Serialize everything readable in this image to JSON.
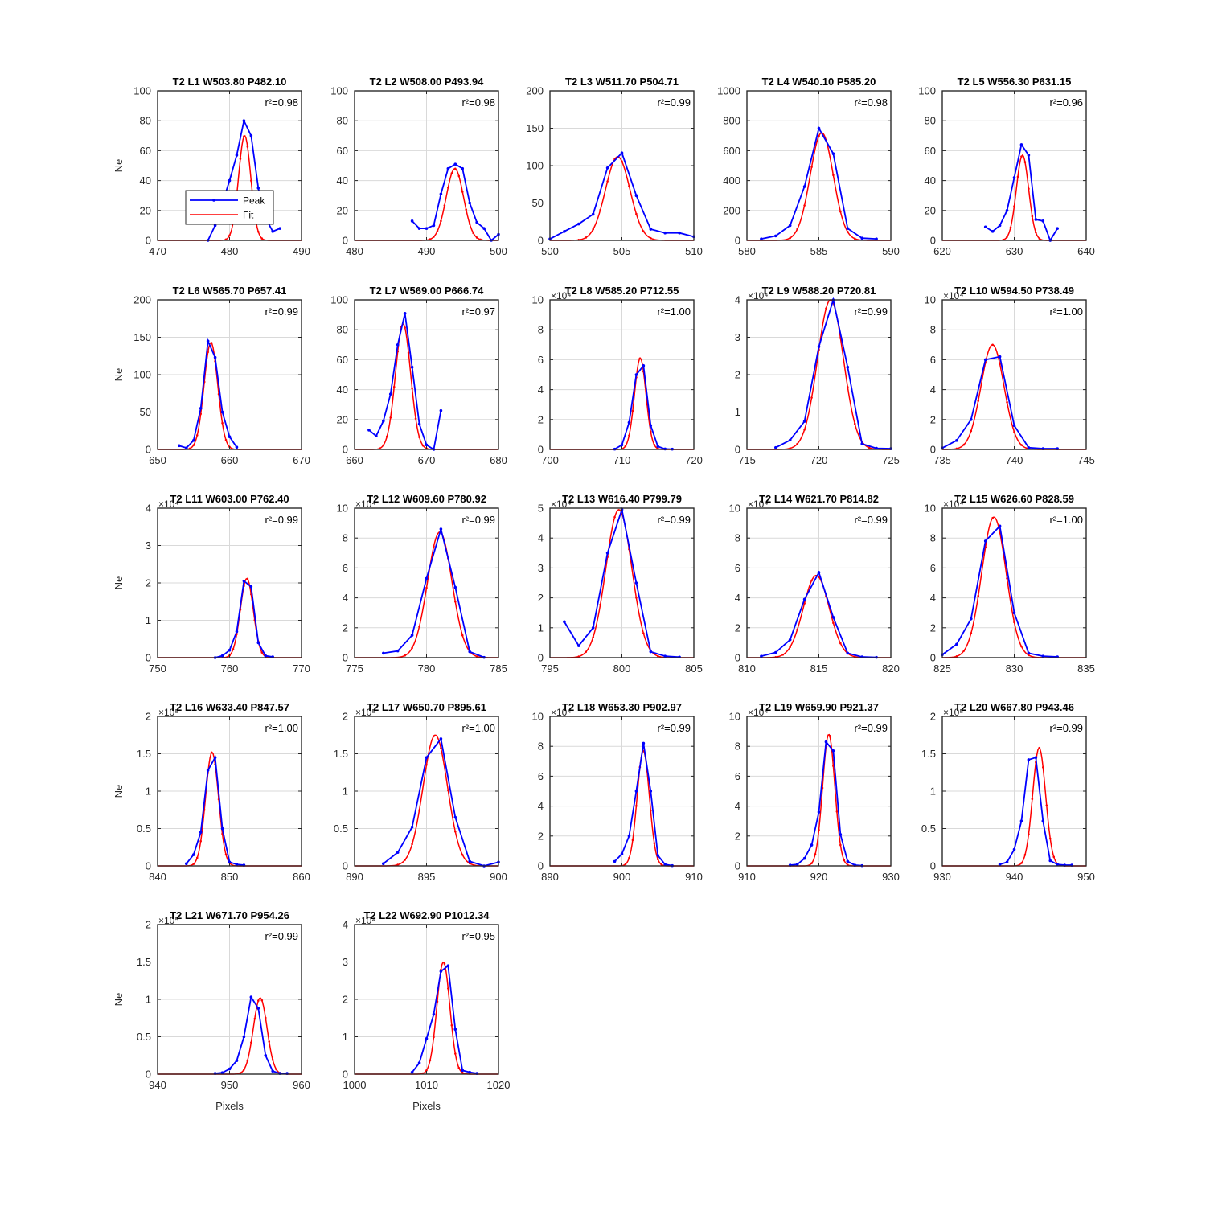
{
  "figure": {
    "legend": {
      "peak_label": "Peak",
      "fit_label": "Fit",
      "colors": {
        "peak": "#0000ff",
        "fit": "#ff0000"
      }
    },
    "y_label": "Ne",
    "x_label": "Pixels"
  },
  "chart_data": [
    {
      "type": "line",
      "title": "T2 L1 W503.80 P482.10",
      "r2": "r²=0.98",
      "xlim": [
        470,
        490
      ],
      "xticks": [
        470,
        480,
        490
      ],
      "ylim": [
        0,
        100
      ],
      "yticks": [
        0,
        20,
        40,
        60,
        80,
        100
      ],
      "exponent": "",
      "center": 482.1,
      "fit": {
        "amplitude": 70,
        "sigma": 0.85
      },
      "peak": {
        "x": [
          477,
          478,
          479,
          480,
          481,
          482,
          483,
          484,
          485,
          486,
          487
        ],
        "y": [
          0,
          10,
          25,
          40,
          57,
          80,
          70,
          35,
          15,
          6,
          8
        ]
      }
    },
    {
      "type": "line",
      "title": "T2 L2 W508.00 P493.94",
      "r2": "r²=0.98",
      "xlim": [
        480,
        500
      ],
      "xticks": [
        480,
        490,
        500
      ],
      "ylim": [
        0,
        100
      ],
      "yticks": [
        0,
        20,
        40,
        60,
        80,
        100
      ],
      "exponent": "",
      "center": 493.94,
      "fit": {
        "amplitude": 48,
        "sigma": 1.2
      },
      "peak": {
        "x": [
          488,
          489,
          490,
          491,
          492,
          493,
          494,
          495,
          496,
          497,
          498,
          499,
          500
        ],
        "y": [
          13,
          8,
          8,
          10,
          31,
          48,
          51,
          48,
          25,
          12,
          8,
          0,
          4
        ]
      }
    },
    {
      "type": "line",
      "title": "T2 L3 W511.70 P504.71",
      "r2": "r²=0.99",
      "xlim": [
        500,
        510
      ],
      "xticks": [
        500,
        505,
        510
      ],
      "ylim": [
        0,
        200
      ],
      "yticks": [
        0,
        50,
        100,
        150,
        200
      ],
      "exponent": "",
      "center": 504.71,
      "fit": {
        "amplitude": 112,
        "sigma": 0.85
      },
      "peak": {
        "x": [
          500,
          501,
          502,
          503,
          504,
          505,
          506,
          507,
          508,
          509,
          510
        ],
        "y": [
          2,
          12,
          22,
          35,
          97,
          117,
          60,
          15,
          10,
          10,
          5
        ]
      }
    },
    {
      "type": "line",
      "title": "T2 L4 W540.10 P585.20",
      "r2": "r²=0.98",
      "xlim": [
        580,
        590
      ],
      "xticks": [
        580,
        585,
        590
      ],
      "ylim": [
        0,
        1000
      ],
      "yticks": [
        0,
        200,
        400,
        600,
        800,
        1000
      ],
      "exponent": "",
      "center": 585.2,
      "fit": {
        "amplitude": 720,
        "sigma": 0.8
      },
      "peak": {
        "x": [
          581,
          582,
          583,
          584,
          585,
          586,
          587,
          588,
          589
        ],
        "y": [
          10,
          30,
          100,
          360,
          750,
          580,
          80,
          15,
          10
        ]
      }
    },
    {
      "type": "line",
      "title": "T2 L5 W556.30 P631.15",
      "r2": "r²=0.96",
      "xlim": [
        620,
        640
      ],
      "xticks": [
        620,
        630,
        640
      ],
      "ylim": [
        0,
        100
      ],
      "yticks": [
        0,
        20,
        40,
        60,
        80,
        100
      ],
      "exponent": "",
      "center": 631.15,
      "fit": {
        "amplitude": 57,
        "sigma": 0.85
      },
      "peak": {
        "x": [
          626,
          627,
          628,
          629,
          630,
          631,
          632,
          633,
          634,
          635,
          636
        ],
        "y": [
          9,
          6,
          10,
          20,
          42,
          64,
          57,
          14,
          13,
          0,
          8
        ]
      }
    },
    {
      "type": "line",
      "title": "T2 L6 W565.70 P657.41",
      "r2": "r²=0.99",
      "xlim": [
        650,
        670
      ],
      "xticks": [
        650,
        660,
        670
      ],
      "ylim": [
        0,
        200
      ],
      "yticks": [
        0,
        50,
        100,
        150,
        200
      ],
      "exponent": "",
      "center": 657.41,
      "fit": {
        "amplitude": 143,
        "sigma": 0.95
      },
      "peak": {
        "x": [
          653,
          654,
          655,
          656,
          657,
          658,
          659,
          660,
          661
        ],
        "y": [
          5,
          2,
          12,
          55,
          145,
          123,
          50,
          17,
          3
        ]
      }
    },
    {
      "type": "line",
      "title": "T2 L7 W569.00 P666.74",
      "r2": "r²=0.97",
      "xlim": [
        660,
        680
      ],
      "xticks": [
        660,
        670,
        680
      ],
      "ylim": [
        0,
        100
      ],
      "yticks": [
        0,
        20,
        40,
        60,
        80,
        100
      ],
      "exponent": "",
      "center": 666.74,
      "fit": {
        "amplitude": 84,
        "sigma": 1.05
      },
      "peak": {
        "x": [
          662,
          663,
          664,
          665,
          666,
          667,
          668,
          669,
          670,
          671,
          672
        ],
        "y": [
          13,
          9,
          19,
          37,
          70,
          91,
          55,
          17,
          3,
          0,
          26
        ]
      }
    },
    {
      "type": "line",
      "title": "T2 L8 W585.20 P712.55",
      "r2": "r²=1.00",
      "xlim": [
        700,
        720
      ],
      "xticks": [
        700,
        710,
        720
      ],
      "ylim": [
        0,
        10
      ],
      "yticks": [
        0,
        2,
        4,
        6,
        8,
        10
      ],
      "exponent": "×10⁴",
      "center": 712.55,
      "fit": {
        "amplitude": 6.1,
        "sigma": 0.8
      },
      "peak": {
        "x": [
          709,
          710,
          711,
          712,
          713,
          714,
          715,
          716,
          717
        ],
        "y": [
          0.02,
          0.3,
          1.8,
          5.0,
          5.6,
          1.6,
          0.2,
          0.03,
          0.02
        ]
      }
    },
    {
      "type": "line",
      "title": "T2 L9 W588.20 P720.81",
      "r2": "r²=0.99",
      "xlim": [
        715,
        725
      ],
      "xticks": [
        715,
        720,
        725
      ],
      "ylim": [
        0,
        4
      ],
      "yticks": [
        0,
        1,
        2,
        3,
        4
      ],
      "exponent": "×10⁴",
      "center": 720.81,
      "fit": {
        "amplitude": 4.0,
        "sigma": 0.9
      },
      "peak": {
        "x": [
          717,
          718,
          719,
          720,
          721,
          722,
          723,
          724,
          725
        ],
        "y": [
          0.05,
          0.25,
          0.75,
          2.75,
          4.0,
          2.2,
          0.15,
          0.03,
          0.02
        ]
      }
    },
    {
      "type": "line",
      "title": "T2 L10 W594.50 P738.49",
      "r2": "r²=1.00",
      "xlim": [
        735,
        745
      ],
      "xticks": [
        735,
        740,
        745
      ],
      "ylim": [
        0,
        10
      ],
      "yticks": [
        0,
        2,
        4,
        6,
        8,
        10
      ],
      "exponent": "×10⁴",
      "center": 738.49,
      "fit": {
        "amplitude": 7.0,
        "sigma": 0.8
      },
      "peak": {
        "x": [
          735,
          736,
          737,
          738,
          739,
          740,
          741,
          742,
          743
        ],
        "y": [
          0.1,
          0.6,
          2.0,
          6.0,
          6.2,
          1.6,
          0.12,
          0.05,
          0.05
        ]
      }
    },
    {
      "type": "line",
      "title": "T2 L11 W603.00 P762.40",
      "r2": "r²=0.99",
      "xlim": [
        750,
        770
      ],
      "xticks": [
        750,
        760,
        770
      ],
      "ylim": [
        0,
        4
      ],
      "yticks": [
        0,
        1,
        2,
        3,
        4
      ],
      "exponent": "×10⁴",
      "center": 762.4,
      "fit": {
        "amplitude": 2.12,
        "sigma": 0.9
      },
      "peak": {
        "x": [
          758,
          759,
          760,
          761,
          762,
          763,
          764,
          765,
          766
        ],
        "y": [
          0.0,
          0.05,
          0.2,
          0.7,
          2.05,
          1.9,
          0.4,
          0.05,
          0.02
        ]
      }
    },
    {
      "type": "line",
      "title": "T2 L12 W609.60 P780.92",
      "r2": "r²=0.99",
      "xlim": [
        775,
        785
      ],
      "xticks": [
        775,
        780,
        785
      ],
      "ylim": [
        0,
        10
      ],
      "yticks": [
        0,
        2,
        4,
        6,
        8,
        10
      ],
      "exponent": "×10⁴",
      "center": 780.92,
      "fit": {
        "amplitude": 8.4,
        "sigma": 0.85
      },
      "peak": {
        "x": [
          777,
          778,
          779,
          780,
          781,
          782,
          783,
          784
        ],
        "y": [
          0.3,
          0.45,
          1.5,
          5.3,
          8.6,
          4.7,
          0.4,
          0.02
        ]
      }
    },
    {
      "type": "line",
      "title": "T2 L13 W616.40 P799.79",
      "r2": "r²=0.99",
      "xlim": [
        795,
        805
      ],
      "xticks": [
        795,
        800,
        805
      ],
      "ylim": [
        0,
        5
      ],
      "yticks": [
        0,
        1,
        2,
        3,
        4,
        5
      ],
      "exponent": "×10⁴",
      "center": 799.79,
      "fit": {
        "amplitude": 4.95,
        "sigma": 0.9
      },
      "peak": {
        "x": [
          796,
          797,
          798,
          799,
          800,
          801,
          802,
          803,
          804
        ],
        "y": [
          1.2,
          0.4,
          1.0,
          3.5,
          4.95,
          2.5,
          0.2,
          0.05,
          0.02
        ]
      }
    },
    {
      "type": "line",
      "title": "T2 L14 W621.70 P814.82",
      "r2": "r²=0.99",
      "xlim": [
        810,
        820
      ],
      "xticks": [
        810,
        815,
        820
      ],
      "ylim": [
        0,
        10
      ],
      "yticks": [
        0,
        2,
        4,
        6,
        8,
        10
      ],
      "exponent": "×10⁴",
      "center": 814.82,
      "fit": {
        "amplitude": 5.5,
        "sigma": 0.9
      },
      "peak": {
        "x": [
          811,
          812,
          813,
          814,
          815,
          816,
          817,
          818,
          819
        ],
        "y": [
          0.1,
          0.35,
          1.2,
          3.9,
          5.7,
          2.7,
          0.3,
          0.05,
          0.02
        ]
      }
    },
    {
      "type": "line",
      "title": "T2 L15 W626.60 P828.59",
      "r2": "r²=1.00",
      "xlim": [
        825,
        835
      ],
      "xticks": [
        825,
        830,
        835
      ],
      "ylim": [
        0,
        10
      ],
      "yticks": [
        0,
        2,
        4,
        6,
        8,
        10
      ],
      "exponent": "×10⁴",
      "center": 828.59,
      "fit": {
        "amplitude": 9.4,
        "sigma": 0.85
      },
      "peak": {
        "x": [
          825,
          826,
          827,
          828,
          829,
          830,
          831,
          832,
          833
        ],
        "y": [
          0.2,
          0.9,
          2.6,
          7.8,
          8.8,
          3.0,
          0.3,
          0.1,
          0.05
        ]
      }
    },
    {
      "type": "line",
      "title": "T2 L16 W633.40 P847.57",
      "r2": "r²=1.00",
      "xlim": [
        840,
        860
      ],
      "xticks": [
        840,
        850,
        860
      ],
      "ylim": [
        0,
        2
      ],
      "yticks": [
        0,
        0.5,
        1,
        1.5,
        2
      ],
      "exponent": "×10⁵",
      "center": 847.57,
      "fit": {
        "amplitude": 1.52,
        "sigma": 0.9
      },
      "peak": {
        "x": [
          844,
          845,
          846,
          847,
          848,
          849,
          850,
          851,
          852
        ],
        "y": [
          0.03,
          0.15,
          0.45,
          1.28,
          1.45,
          0.5,
          0.05,
          0.02,
          0.01
        ]
      }
    },
    {
      "type": "line",
      "title": "T2 L17 W650.70 P895.61",
      "r2": "r²=1.00",
      "xlim": [
        890,
        900
      ],
      "xticks": [
        890,
        895,
        900
      ],
      "ylim": [
        0,
        2
      ],
      "yticks": [
        0,
        0.5,
        1,
        1.5,
        2
      ],
      "exponent": "×10⁵",
      "center": 895.61,
      "fit": {
        "amplitude": 1.75,
        "sigma": 0.85
      },
      "peak": {
        "x": [
          892,
          893,
          894,
          895,
          896,
          897,
          898,
          899,
          900
        ],
        "y": [
          0.03,
          0.18,
          0.52,
          1.45,
          1.7,
          0.65,
          0.06,
          0.0,
          0.05
        ]
      }
    },
    {
      "type": "line",
      "title": "T2 L18 W653.30 P902.97",
      "r2": "r²=0.99",
      "xlim": [
        890,
        910
      ],
      "xticks": [
        890,
        900,
        910
      ],
      "ylim": [
        0,
        10
      ],
      "yticks": [
        0,
        2,
        4,
        6,
        8,
        10
      ],
      "exponent": "×10⁴",
      "center": 902.97,
      "fit": {
        "amplitude": 7.7,
        "sigma": 0.85
      },
      "peak": {
        "x": [
          899,
          900,
          901,
          902,
          903,
          904,
          905,
          906,
          907
        ],
        "y": [
          0.3,
          0.8,
          2.0,
          5.0,
          8.2,
          5.0,
          0.7,
          0.1,
          0.02
        ]
      }
    },
    {
      "type": "line",
      "title": "T2 L19 W659.90 P921.37",
      "r2": "r²=0.99",
      "xlim": [
        910,
        930
      ],
      "xticks": [
        910,
        920,
        930
      ],
      "ylim": [
        0,
        10
      ],
      "yticks": [
        0,
        2,
        4,
        6,
        8,
        10
      ],
      "exponent": "×10⁴",
      "center": 921.37,
      "fit": {
        "amplitude": 8.8,
        "sigma": 0.85
      },
      "peak": {
        "x": [
          916,
          917,
          918,
          919,
          920,
          921,
          922,
          923,
          924,
          925,
          926
        ],
        "y": [
          0.05,
          0.1,
          0.5,
          1.4,
          3.6,
          8.3,
          7.7,
          2.1,
          0.3,
          0.05,
          0.02
        ]
      }
    },
    {
      "type": "line",
      "title": "T2 L20 W667.80 P943.46",
      "r2": "r²=0.99",
      "xlim": [
        930,
        950
      ],
      "xticks": [
        930,
        940,
        950
      ],
      "ylim": [
        0,
        2
      ],
      "yticks": [
        0,
        0.5,
        1,
        1.5,
        2
      ],
      "exponent": "×10⁵",
      "center": 943.46,
      "fit": {
        "amplitude": 1.58,
        "sigma": 0.9
      },
      "peak": {
        "x": [
          938,
          939,
          940,
          941,
          942,
          943,
          944,
          945,
          946,
          947,
          948
        ],
        "y": [
          0.02,
          0.05,
          0.22,
          0.6,
          1.42,
          1.45,
          0.6,
          0.07,
          0.02,
          0.01,
          0.01
        ]
      }
    },
    {
      "type": "line",
      "title": "T2 L21 W671.70 P954.26",
      "r2": "r²=0.99",
      "xlim": [
        940,
        960
      ],
      "xticks": [
        940,
        950,
        960
      ],
      "ylim": [
        0,
        2
      ],
      "yticks": [
        0,
        0.5,
        1,
        1.5,
        2
      ],
      "exponent": "×10⁵",
      "center": 954.26,
      "fit": {
        "amplitude": 1.02,
        "sigma": 0.95
      },
      "peak": {
        "x": [
          948,
          949,
          950,
          951,
          952,
          953,
          954,
          955,
          956,
          957,
          958
        ],
        "y": [
          0.01,
          0.02,
          0.07,
          0.18,
          0.5,
          1.03,
          0.88,
          0.25,
          0.04,
          0.01,
          0.01
        ]
      }
    },
    {
      "type": "line",
      "title": "T2 L22 W692.90 P1012.34",
      "r2": "r²=0.95",
      "xlim": [
        1000,
        1020
      ],
      "xticks": [
        1000,
        1010,
        1020
      ],
      "ylim": [
        0,
        4
      ],
      "yticks": [
        0,
        1,
        2,
        3,
        4
      ],
      "exponent": "×10⁴",
      "center": 1012.34,
      "fit": {
        "amplitude": 3.0,
        "sigma": 0.9
      },
      "peak": {
        "x": [
          1008,
          1009,
          1010,
          1011,
          1012,
          1013,
          1014,
          1015,
          1016,
          1017
        ],
        "y": [
          0.05,
          0.3,
          0.95,
          1.6,
          2.75,
          2.9,
          1.2,
          0.1,
          0.05,
          0.02
        ]
      }
    }
  ]
}
